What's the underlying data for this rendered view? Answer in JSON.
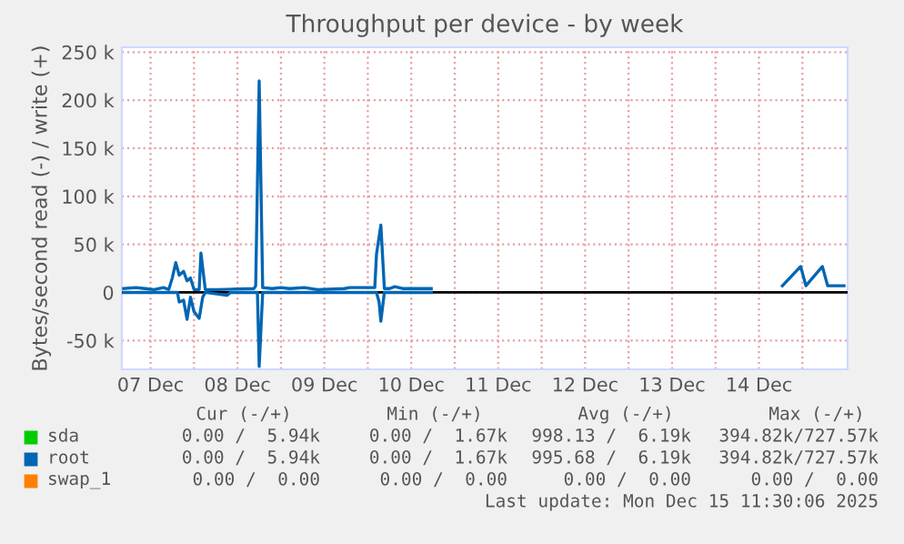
{
  "chart_data": {
    "type": "line",
    "title": "Throughput per device - by week",
    "ylabel": "Bytes/second read (-) / write (+)",
    "xlim": [
      "2025-12-07T04:05",
      "2025-12-15T12:29"
    ],
    "xticks": [
      {
        "value": "2025-12-07T12:00",
        "label": "07 Dec"
      },
      {
        "value": "2025-12-08",
        "label": null
      },
      {
        "value": "2025-12-08T12:00",
        "label": "08 Dec"
      },
      {
        "value": "2025-12-09",
        "label": null
      },
      {
        "value": "2025-12-09T12:00",
        "label": "09 Dec"
      },
      {
        "value": "2025-12-10",
        "label": null
      },
      {
        "value": "2025-12-10T12:00",
        "label": "10 Dec"
      },
      {
        "value": "2025-12-11",
        "label": null
      },
      {
        "value": "2025-12-11T12:00",
        "label": "11 Dec"
      },
      {
        "value": "2025-12-12",
        "label": null
      },
      {
        "value": "2025-12-12T12:00",
        "label": "12 Dec"
      },
      {
        "value": "2025-12-13",
        "label": null
      },
      {
        "value": "2025-12-13T12:00",
        "label": "13 Dec"
      },
      {
        "value": "2025-12-14",
        "label": null
      },
      {
        "value": "2025-12-14T12:00",
        "label": "14 Dec"
      },
      {
        "value": "2025-12-15",
        "label": null
      }
    ],
    "ylim": [
      -80000,
      255000
    ],
    "yticks": [
      {
        "value": -50000,
        "label": "-50 k"
      },
      0,
      {
        "value": 50000,
        "label": "50 k"
      },
      {
        "value": 100000,
        "label": "100 k"
      },
      {
        "value": 150000,
        "label": "150 k"
      },
      {
        "value": 200000,
        "label": "200 k"
      },
      {
        "value": 250000,
        "label": "250 k"
      }
    ],
    "grid": true,
    "legend": "bottom",
    "ref_lines": [
      {
        "axis": "y",
        "value": 0,
        "color": "#000000"
      }
    ],
    "series": [
      {
        "name": "sda",
        "color": "#00cc00",
        "x": [
          null
        ],
        "values": [
          null
        ]
      },
      {
        "name": "root",
        "color": "#0066b3",
        "x": [
          "2025-12-07T04:34",
          "2025-12-07T07:55",
          "2025-12-07T10:34",
          "2025-12-07T12:58",
          "2025-12-07T15:36",
          "2025-12-07T17:02",
          "2025-12-07T18:00",
          "2025-12-07T18:58",
          "2025-12-07T19:55",
          "2025-12-07T21:07",
          "2025-12-07T22:05",
          "2025-12-07T23:02",
          "2025-12-08T00:00",
          "2025-12-08T01:26",
          "2025-12-08T01:55",
          "2025-12-08T03:07",
          "2025-12-08T06:29",
          "2025-12-08T16:34",
          "2025-12-08T17:02",
          "2025-12-08T18:00",
          "2025-12-08T18:58",
          "2025-12-08T21:36",
          "2025-12-09T00:00",
          "2025-12-09T02:24",
          "2025-12-09T06:29",
          "2025-12-09T10:05",
          "2025-12-09T17:31",
          "2025-12-09T18:58",
          "2025-12-10T01:55",
          "2025-12-10T02:24",
          "2025-12-10T03:36",
          "2025-12-10T04:34",
          "2025-12-10T06:00",
          "2025-12-10T07:26",
          "2025-12-10T09:36",
          "2025-12-10T17:31",
          null,
          "2025-12-14T18:29",
          "2025-12-14T23:31",
          "2025-12-15T00:58",
          "2025-12-15T05:31",
          "2025-12-15T06:58",
          "2025-12-15T11:30"
        ],
        "values": [
          4000,
          5000,
          4000,
          3000,
          5000,
          3000,
          15000,
          31000,
          18000,
          22000,
          12000,
          15000,
          3000,
          3000,
          41000,
          3000,
          3000,
          4000,
          7000,
          220000,
          5000,
          4000,
          5000,
          4000,
          5000,
          3000,
          4000,
          5000,
          5000,
          40000,
          70000,
          4000,
          4000,
          6000,
          4000,
          4000,
          null,
          7000,
          27000,
          7000,
          27000,
          7000,
          7000
        ]
      },
      {
        "color": "#0066b3",
        "x": [
          "2025-12-07T04:34",
          "2025-12-07T19:26",
          "2025-12-07T19:55",
          "2025-12-07T21:07",
          "2025-12-07T22:05",
          "2025-12-07T23:02",
          "2025-12-08T00:00",
          "2025-12-08T01:26",
          "2025-12-08T02:24",
          "2025-12-08T03:07",
          "2025-12-08T09:07",
          "2025-12-08T10:05",
          "2025-12-08T17:31",
          "2025-12-08T18:00",
          "2025-12-08T18:58",
          "2025-12-10T02:24",
          "2025-12-10T03:07",
          "2025-12-10T03:36",
          "2025-12-10T04:34",
          "2025-12-10T17:31"
        ],
        "values": [
          0,
          0,
          -10000,
          -8000,
          -28000,
          -5000,
          -20000,
          -27000,
          -5000,
          0,
          -3000,
          0,
          0,
          -77000,
          0,
          0,
          -10000,
          -30000,
          0,
          0
        ]
      },
      {
        "name": "swap_1",
        "color": "#ff8000",
        "x": [
          null
        ],
        "values": [
          null
        ]
      }
    ],
    "annotations": [
      "Cur (-/+)",
      "Min (-/+)",
      "Avg (-/+)",
      "Max (-/+)",
      "0.00 /  5.94k",
      "0.00 /  1.67k",
      "998.13 /  6.19k",
      "394.82k/727.57k",
      "0.00 /  5.94k",
      "0.00 /  1.67k",
      "995.68 /  6.19k",
      "394.82k/727.57k",
      "0.00 /  0.00",
      "0.00 /  0.00",
      "0.00 /  0.00",
      "0.00 /  0.00",
      "Last update: Mon Dec 15 11:30:06 2025"
    ]
  }
}
